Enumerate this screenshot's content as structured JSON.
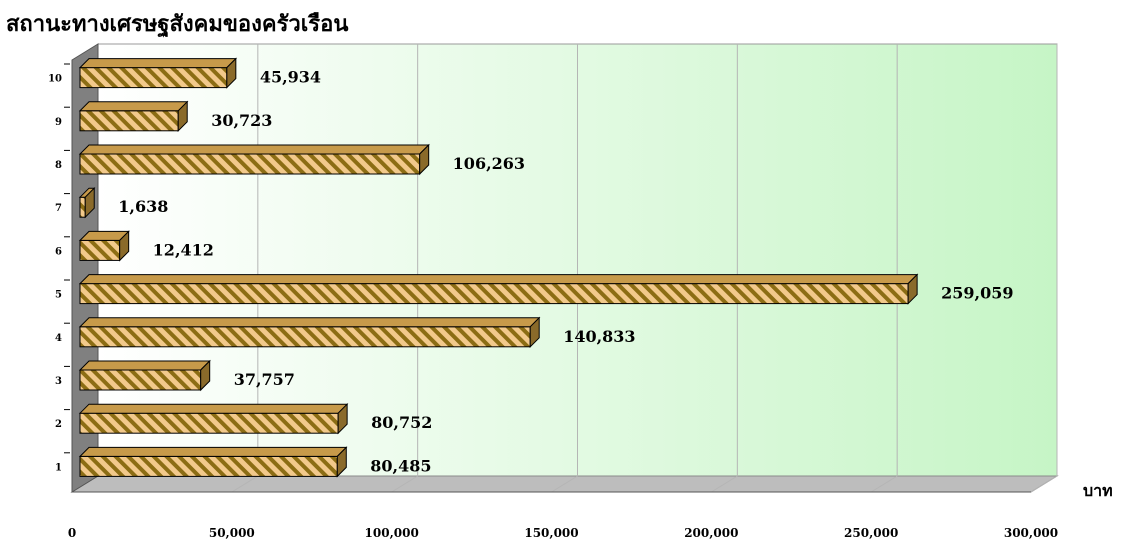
{
  "chart_data": {
    "type": "bar",
    "orientation": "horizontal",
    "title": "สถานะทางเศรษฐสังคมของครัวเรือน",
    "xlabel": "บาท",
    "ylabel": "",
    "categories": [
      "1",
      "2",
      "3",
      "4",
      "5",
      "6",
      "7",
      "8",
      "9",
      "10"
    ],
    "values": [
      80485,
      80752,
      37757,
      140833,
      259059,
      12412,
      1638,
      106263,
      30723,
      45934
    ],
    "value_labels": [
      "80,485",
      "80,752",
      "37,757",
      "140,833",
      "259,059",
      "12,412",
      "1,638",
      "106,263",
      "30,723",
      "45,934"
    ],
    "xlim": [
      0,
      300000
    ],
    "x_ticks": [
      0,
      50000,
      100000,
      150000,
      200000,
      250000,
      300000
    ],
    "x_tick_labels": [
      "0",
      "50,000",
      "100,000",
      "150,000",
      "200,000",
      "250,000",
      "300,000"
    ],
    "grid": true,
    "legend": "none",
    "colors": {
      "bar_fill": "#f2c98b",
      "bar_stripe": "#8c6d14",
      "bar_top": "#c79a4a",
      "bar_side": "#8a6a2a",
      "plot_bg_right": "#c6f5c6",
      "wall": "#808080",
      "floor": "#bdbdbd"
    }
  }
}
